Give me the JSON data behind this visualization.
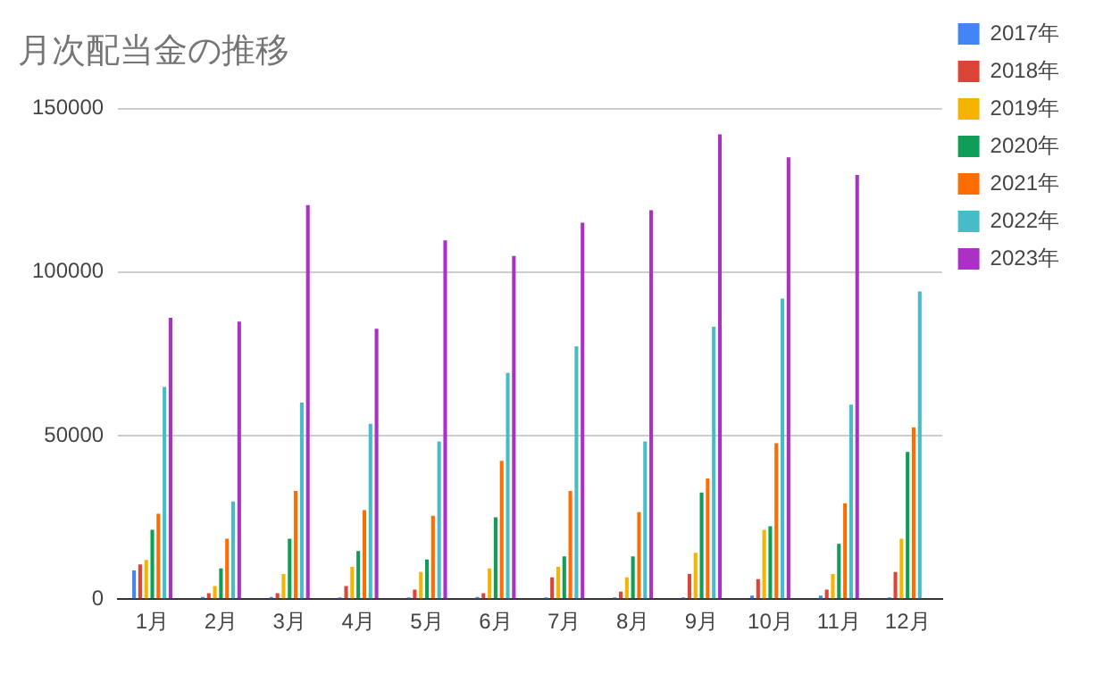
{
  "chart_data": {
    "type": "bar",
    "title": "月次配当金の推移",
    "categories": [
      "1月",
      "2月",
      "3月",
      "4月",
      "5月",
      "6月",
      "7月",
      "8月",
      "9月",
      "10月",
      "11月",
      "12月"
    ],
    "series": [
      {
        "name": "2017年",
        "color": "#4285f4",
        "values": [
          8800,
          700,
          700,
          500,
          500,
          700,
          500,
          500,
          500,
          1100,
          1100,
          500
        ]
      },
      {
        "name": "2018年",
        "color": "#db4437",
        "values": [
          10600,
          1800,
          1800,
          4000,
          2900,
          1800,
          6700,
          2300,
          7700,
          6100,
          2900,
          8300
        ]
      },
      {
        "name": "2019年",
        "color": "#f4b400",
        "values": [
          12000,
          4000,
          7700,
          9900,
          8300,
          9400,
          9900,
          6700,
          14200,
          21200,
          7700,
          18500
        ]
      },
      {
        "name": "2020年",
        "color": "#0f9d58",
        "values": [
          21200,
          9400,
          18500,
          14700,
          12100,
          25000,
          13100,
          13100,
          32600,
          22300,
          16900,
          45000
        ]
      },
      {
        "name": "2021年",
        "color": "#ff6d00",
        "values": [
          26100,
          18500,
          33100,
          27200,
          25500,
          42300,
          33100,
          26600,
          36900,
          47700,
          29300,
          52500
        ]
      },
      {
        "name": "2022年",
        "color": "#46bdc6",
        "values": [
          64900,
          29900,
          60100,
          53600,
          48200,
          69200,
          77300,
          48200,
          83300,
          91900,
          59500,
          94100
        ]
      },
      {
        "name": "2023年",
        "color": "#ab30c4",
        "values": [
          86000,
          84900,
          120500,
          82700,
          109700,
          104900,
          115100,
          118900,
          142100,
          135100,
          129700,
          null
        ]
      }
    ],
    "ylim": [
      0,
      150000
    ],
    "yticks": [
      0,
      50000,
      100000,
      150000
    ],
    "grid": "y",
    "legend": "right"
  }
}
